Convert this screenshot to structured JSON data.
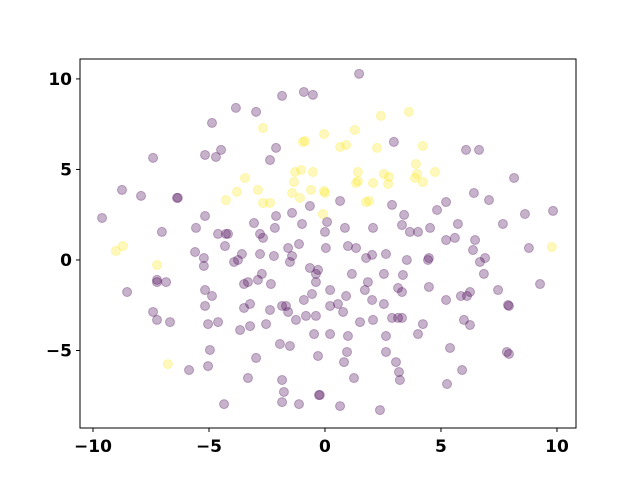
{
  "chart_data": {
    "type": "scatter",
    "xlim": [
      -10.56,
      10.82
    ],
    "ylim": [
      -9.28,
      11.1
    ],
    "xticks": [
      {
        "value": -10,
        "label": "−10"
      },
      {
        "value": -5,
        "label": "−5"
      },
      0,
      5,
      10
    ],
    "yticks": [
      {
        "value": -5,
        "label": "−5"
      },
      0,
      5,
      10
    ],
    "opacity": 0.3,
    "series": [
      {
        "color": "#440154",
        "x": [
          1.47,
          -0.91,
          -0.52,
          -1.85,
          -3.84,
          -2.97,
          -4.87,
          -7.41,
          -4.48,
          -5.17,
          -4.7,
          -2.37,
          -2.11,
          2.97,
          6.08,
          6.64,
          8.15,
          6.42,
          7.07,
          8.62,
          9.83,
          -8.75,
          -7.93,
          -6.38,
          -6.34,
          -9.61,
          -7.03,
          -5.56,
          -5.17,
          -4.61,
          -4.18,
          -3.06,
          -2.8,
          -2.67,
          -2.16,
          -2.11,
          -1.42,
          -1.12,
          -0.99,
          -0.65,
          0.09,
          0.0,
          0.65,
          0.86,
          0.99,
          1.34,
          2.07,
          2.89,
          3.41,
          3.32,
          3.66,
          4.01,
          4.53,
          4.83,
          5.22,
          5.73,
          5.22,
          5.6,
          6.47,
          6.38,
          6.9,
          6.68,
          7.67,
          8.79,
          9.27,
          7.89,
          7.93,
          7.93,
          7.84,
          7.46,
          6.85,
          6.25,
          6.12,
          5.86,
          5.99,
          6.25,
          5.91,
          5.26,
          5.39,
          5.22,
          4.48,
          4.48,
          4.44,
          3.53,
          3.36,
          3.32,
          3.15,
          2.54,
          2.63,
          2.03,
          1.77,
          1.16,
          1.85,
          1.72,
          2.03,
          2.54,
          2.89,
          3.15,
          3.32,
          4.22,
          4.01,
          2.63,
          2.07,
          1.51,
          0.78,
          0.99,
          0.95,
          0.82,
          1.25,
          2.63,
          3.06,
          3.23,
          3.19,
          2.37,
          0.65,
          -0.22,
          -0.26,
          -0.3,
          -0.47,
          -0.39,
          -0.82,
          -0.91,
          -0.39,
          -0.65,
          -0.3,
          0.22,
          0.56,
          0.91,
          0.04,
          -1.42,
          -1.59,
          -1.51,
          -2.2,
          -2.8,
          -2.72,
          -2.33,
          -3.32,
          -3.49,
          -3.75,
          -3.92,
          -5.22,
          -5.22,
          -5.6,
          -6.85,
          -7.24,
          -7.24,
          -8.53,
          -7.41,
          -7.24,
          -6.68,
          -5.17,
          -5.17,
          -4.87,
          -5.04,
          -4.61,
          -3.66,
          -3.23,
          -3.23,
          -3.49,
          -2.54,
          -2.37,
          -1.85,
          -1.59,
          -1.68,
          -1.94,
          -1.51,
          -2.97,
          -3.32,
          -4.96,
          -5.04,
          -5.86,
          -4.35,
          -1.85,
          -1.77,
          -1.85,
          -1.12,
          -2.89,
          -3.58,
          -4.31,
          0.22,
          -0.39,
          -0.56,
          -1.25,
          0.22,
          -4.27
        ],
        "y": [
          10.28,
          9.28,
          9.12,
          9.06,
          8.4,
          8.18,
          7.57,
          5.64,
          6.08,
          5.8,
          5.69,
          5.52,
          6.19,
          6.52,
          6.08,
          6.08,
          4.53,
          3.7,
          3.31,
          2.54,
          2.71,
          3.87,
          3.54,
          3.43,
          3.43,
          2.32,
          1.55,
          1.77,
          2.43,
          1.44,
          1.44,
          2.04,
          1.44,
          1.22,
          1.77,
          2.43,
          2.6,
          0.88,
          1.99,
          2.98,
          2.1,
          1.55,
          3.26,
          1.77,
          0.77,
          0.66,
          1.77,
          3.04,
          2.49,
          1.93,
          1.55,
          1.55,
          1.77,
          2.76,
          3.2,
          1.99,
          1.1,
          1.22,
          1.1,
          0.55,
          0.11,
          -0.11,
          1.99,
          0.66,
          -1.33,
          -2.49,
          -2.54,
          -5.19,
          -5.08,
          -1.66,
          -0.77,
          -1.77,
          -1.99,
          -1.99,
          -3.31,
          -3.59,
          -6.08,
          -6.85,
          -4.86,
          -2.21,
          -1.49,
          0.11,
          0.0,
          0.0,
          -0.83,
          -1.77,
          -1.55,
          -0.77,
          0.33,
          0.28,
          0.11,
          -0.77,
          -1.22,
          -1.66,
          -2.21,
          -2.43,
          -3.2,
          -3.2,
          -3.2,
          -3.54,
          -4.09,
          -4.2,
          -3.31,
          -3.43,
          -2.87,
          -4.2,
          -5.08,
          -5.64,
          -6.52,
          -5.08,
          -5.64,
          -6.63,
          -6.19,
          -8.29,
          -8.07,
          -7.46,
          -7.46,
          -5.3,
          -4.09,
          -3.09,
          -3.09,
          -2.21,
          -1.22,
          -0.44,
          -0.55,
          -2.54,
          -2.43,
          -1.99,
          0.66,
          0.22,
          0.66,
          -0.11,
          0.22,
          0.33,
          -0.77,
          -1.33,
          -1.22,
          -1.33,
          0.0,
          -0.11,
          0.11,
          -0.33,
          0.44,
          -1.22,
          -1.22,
          -1.1,
          -1.77,
          -2.87,
          -3.31,
          -3.43,
          -2.54,
          -1.66,
          -1.99,
          -3.54,
          -3.43,
          -3.87,
          -3.65,
          -2.43,
          -2.65,
          -3.54,
          -2.76,
          -2.54,
          -2.87,
          -2.54,
          -4.64,
          -4.75,
          -5.41,
          -6.52,
          -4.97,
          -5.86,
          -6.08,
          -7.96,
          -6.63,
          -7.29,
          -7.85,
          -7.96,
          -1.1,
          0.33,
          0.77,
          -1.66,
          -0.77,
          -1.88,
          -3.31,
          -4.09,
          1.44
        ]
      },
      {
        "color": "#fde725",
        "x": [
          -2.67,
          -0.95,
          -0.86,
          -0.04,
          0.65,
          0.91,
          1.29,
          2.41,
          3.62,
          2.24,
          4.22,
          -1.29,
          -1.03,
          -0.52,
          -1.34,
          -1.42,
          -1.08,
          -0.6,
          -0.04,
          0.0,
          1.42,
          1.42,
          1.34,
          2.07,
          2.54,
          2.76,
          3.92,
          3.97,
          3.88,
          4.22,
          4.74,
          -3.45,
          -3.79,
          -2.89,
          -2.67,
          -2.37,
          -4.27,
          -0.09,
          1.9,
          -9.01,
          -8.71,
          -7.24,
          -6.77,
          9.78,
          2.72,
          1.77
        ],
        "y": [
          7.29,
          6.52,
          6.57,
          6.96,
          6.24,
          6.35,
          7.18,
          7.96,
          8.18,
          6.19,
          6.3,
          4.86,
          4.97,
          4.86,
          4.31,
          3.7,
          3.43,
          3.87,
          3.81,
          3.7,
          4.86,
          4.36,
          4.25,
          4.25,
          4.75,
          4.59,
          5.3,
          4.75,
          4.53,
          4.31,
          4.86,
          4.53,
          3.76,
          3.87,
          3.15,
          3.15,
          3.31,
          2.54,
          3.26,
          0.5,
          0.77,
          -0.28,
          -5.75,
          0.72,
          4.2,
          3.2
        ]
      }
    ]
  }
}
